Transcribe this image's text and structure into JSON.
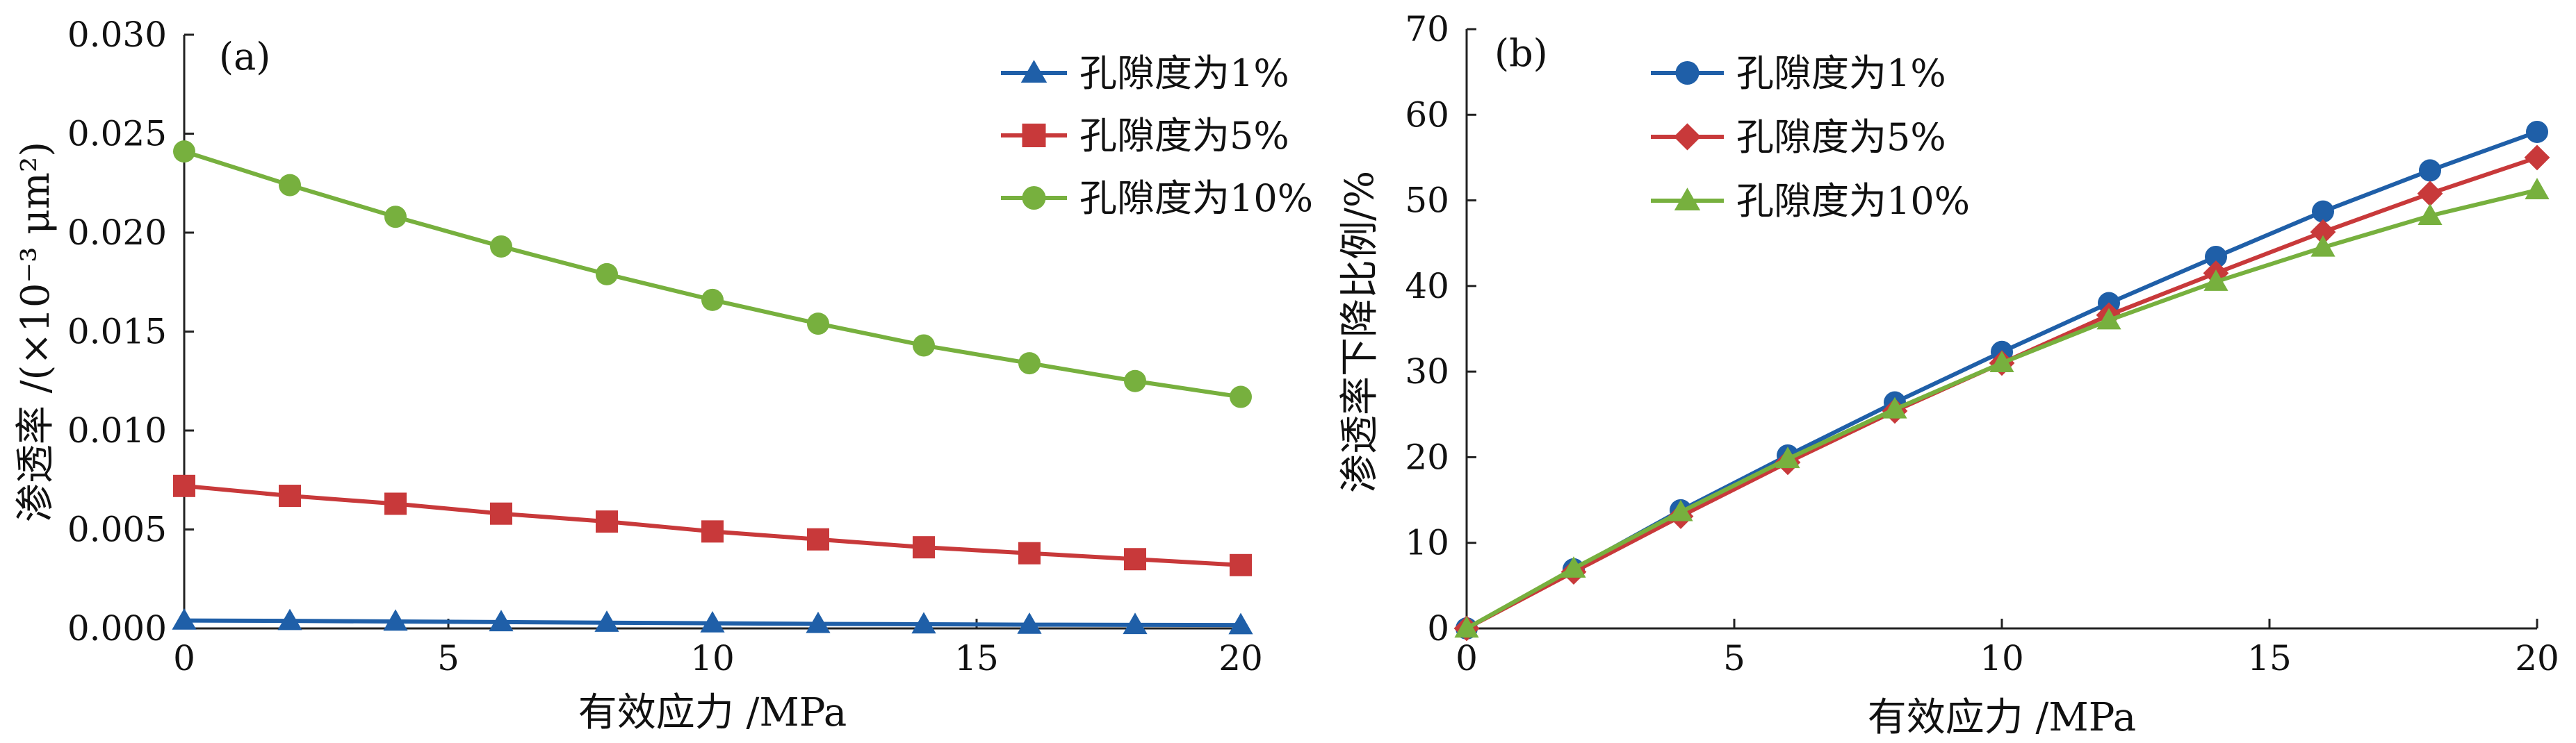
{
  "chart_data": [
    {
      "type": "line",
      "panel_label": "(a)",
      "xlabel": "有效应力 /MPa",
      "ylabel": "渗透率 /(×10⁻³ μm²)",
      "xlim": [
        0,
        20
      ],
      "ylim": [
        0,
        0.03
      ],
      "xticks": [
        "0",
        "5",
        "10",
        "15",
        "20"
      ],
      "yticks": [
        "0.000",
        "0.005",
        "0.010",
        "0.015",
        "0.020",
        "0.025",
        "0.030"
      ],
      "grid": false,
      "legend_position": "top-right",
      "x": [
        0,
        2,
        4,
        6,
        8,
        10,
        12,
        14,
        16,
        18,
        20
      ],
      "series": [
        {
          "name": "孔隙度为1%",
          "color": "#1f5fa8",
          "marker": "triangle",
          "values": [
            0.0004,
            0.00038,
            0.00035,
            0.00032,
            0.00029,
            0.00026,
            0.00023,
            0.00021,
            0.00019,
            0.00018,
            0.00017
          ]
        },
        {
          "name": "孔隙度为5%",
          "color": "#c8393a",
          "marker": "square",
          "values": [
            0.0072,
            0.0067,
            0.0063,
            0.0058,
            0.0054,
            0.0049,
            0.0045,
            0.0041,
            0.0038,
            0.0035,
            0.0032
          ]
        },
        {
          "name": "孔隙度为10%",
          "color": "#77b03e",
          "marker": "circle",
          "values": [
            0.0241,
            0.0224,
            0.0208,
            0.0193,
            0.0179,
            0.0166,
            0.0154,
            0.0143,
            0.0134,
            0.0125,
            0.0117
          ]
        }
      ]
    },
    {
      "type": "line",
      "panel_label": "(b)",
      "xlabel": "有效应力 /MPa",
      "ylabel": "渗透率下降比例/%",
      "xlim": [
        0,
        20
      ],
      "ylim": [
        0,
        70
      ],
      "xticks": [
        "0",
        "5",
        "10",
        "15",
        "20"
      ],
      "yticks": [
        "0",
        "10",
        "20",
        "30",
        "40",
        "50",
        "60",
        "70"
      ],
      "grid": false,
      "legend_position": "top-left",
      "x": [
        0,
        2,
        4,
        6,
        8,
        10,
        12,
        14,
        16,
        18,
        20
      ],
      "series": [
        {
          "name": "孔隙度为1%",
          "color": "#1f5fa8",
          "marker": "circle",
          "values": [
            0,
            6.9,
            13.8,
            20.2,
            26.4,
            32.3,
            38.0,
            43.4,
            48.7,
            53.5,
            58.0
          ]
        },
        {
          "name": "孔隙度为5%",
          "color": "#c8393a",
          "marker": "diamond",
          "values": [
            0,
            6.6,
            13.1,
            19.4,
            25.4,
            31.0,
            36.6,
            41.5,
            46.3,
            50.8,
            55.0
          ]
        },
        {
          "name": "孔隙度为10%",
          "color": "#77b03e",
          "marker": "triangle",
          "values": [
            0,
            7.0,
            13.6,
            19.8,
            25.6,
            31.0,
            36.0,
            40.5,
            44.5,
            48.2,
            51.2
          ]
        }
      ]
    }
  ]
}
